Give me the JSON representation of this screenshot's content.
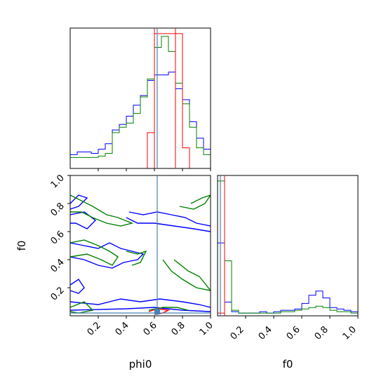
{
  "chart_data": {
    "type": "corner",
    "colors": {
      "red": "#ff0000",
      "blue": "#0000ff",
      "green": "#008000",
      "truth": "#4682b4"
    },
    "panels": [
      {
        "id": "hist-phi0",
        "type": "histogram",
        "xlim": [
          0,
          1
        ],
        "bin_edges": [
          0,
          0.05,
          0.1,
          0.15,
          0.2,
          0.25,
          0.3,
          0.35,
          0.4,
          0.45,
          0.5,
          0.55,
          0.6,
          0.65,
          0.7,
          0.75,
          0.8,
          0.85,
          0.9,
          0.95,
          1.0
        ],
        "series": [
          {
            "color": "blue",
            "counts": [
              0.1,
              0.12,
              0.12,
              0.11,
              0.14,
              0.18,
              0.28,
              0.32,
              0.38,
              0.46,
              0.53,
              0.64,
              0.68,
              0.68,
              0.7,
              0.58,
              0.5,
              0.34,
              0.22,
              0.14
            ]
          },
          {
            "color": "green",
            "counts": [
              0.08,
              0.08,
              0.08,
              0.08,
              0.09,
              0.11,
              0.26,
              0.3,
              0.33,
              0.4,
              0.52,
              0.65,
              0.88,
              0.96,
              0.85,
              0.62,
              0.47,
              0.3,
              0.15,
              0.1
            ]
          },
          {
            "color": "red",
            "counts": [
              0,
              0,
              0,
              0,
              0,
              0,
              0,
              0,
              0,
              0,
              0,
              0.26,
              0.98,
              0.98,
              0.98,
              0.98,
              0.15,
              0,
              0,
              0
            ]
          }
        ],
        "ticks": [
          0.2,
          0.4,
          0.6,
          0.8,
          1.0
        ],
        "tick_labels": []
      },
      {
        "id": "hist-f0",
        "type": "histogram",
        "xlim": [
          0,
          1
        ],
        "bin_edges": [
          0,
          0.05,
          0.1,
          0.15,
          0.2,
          0.25,
          0.3,
          0.35,
          0.4,
          0.45,
          0.5,
          0.55,
          0.6,
          0.65,
          0.7,
          0.75,
          0.8,
          0.85,
          0.9,
          0.95,
          1.0
        ],
        "series": [
          {
            "color": "blue",
            "counts": [
              0.53,
              0.1,
              0.03,
              0.02,
              0.02,
              0.02,
              0.03,
              0.02,
              0.03,
              0.04,
              0.04,
              0.05,
              0.09,
              0.15,
              0.18,
              0.13,
              0.06,
              0.05,
              0.04,
              0.03
            ]
          },
          {
            "color": "green",
            "counts": [
              0.98,
              0.4,
              0.04,
              0.02,
              0.02,
              0.02,
              0.02,
              0.02,
              0.02,
              0.03,
              0.03,
              0.04,
              0.05,
              0.06,
              0.07,
              0.06,
              0.04,
              0.03,
              0.03,
              0.02
            ]
          },
          {
            "color": "red",
            "counts": [
              0.02,
              0,
              0,
              0,
              0,
              0,
              0,
              0,
              0,
              0,
              0,
              0,
              0,
              0,
              0,
              0,
              0,
              0,
              0,
              0
            ]
          }
        ],
        "ticks": [
          0.2,
          0.4,
          0.6,
          0.8,
          1.0
        ],
        "tick_labels": [
          "0.2",
          "0.4",
          "0.6",
          "0.8",
          "1.0"
        ],
        "xlabel": "f0"
      },
      {
        "id": "scatter-phi0-f0",
        "type": "contour",
        "xlim": [
          0,
          1
        ],
        "ylim": [
          0,
          1
        ],
        "x_ticks": [
          0.2,
          0.4,
          0.6,
          0.8,
          1.0
        ],
        "x_tick_labels": [
          "0.2",
          "0.4",
          "0.6",
          "0.8",
          "1.0"
        ],
        "y_ticks": [
          0.2,
          0.4,
          0.6,
          0.8,
          1.0
        ],
        "y_tick_labels": [
          "0.2",
          "0.4",
          "0.6",
          "0.8",
          "1.0"
        ],
        "xlabel": "phi0",
        "ylabel": "f0",
        "contours": [
          {
            "color": "blue",
            "points": [
              [
                0.0,
                0.8
              ],
              [
                0.06,
                0.86
              ],
              [
                0.12,
                0.84
              ],
              [
                0.06,
                0.78
              ],
              [
                0.0,
                0.76
              ]
            ]
          },
          {
            "color": "blue",
            "points": [
              [
                0.0,
                0.72
              ],
              [
                0.1,
                0.74
              ],
              [
                0.18,
                0.68
              ],
              [
                0.12,
                0.62
              ],
              [
                0.04,
                0.66
              ],
              [
                0.0,
                0.66
              ]
            ]
          },
          {
            "color": "blue",
            "points": [
              [
                0.42,
                0.74
              ],
              [
                0.52,
                0.72
              ],
              [
                0.62,
                0.74
              ],
              [
                0.72,
                0.72
              ],
              [
                0.82,
                0.7
              ],
              [
                0.9,
                0.66
              ],
              [
                1.0,
                0.64
              ]
            ]
          },
          {
            "color": "blue",
            "points": [
              [
                0.4,
                0.7
              ],
              [
                0.48,
                0.66
              ],
              [
                0.6,
                0.66
              ],
              [
                0.74,
                0.64
              ],
              [
                0.88,
                0.62
              ],
              [
                1.0,
                0.6
              ]
            ]
          },
          {
            "color": "blue",
            "points": [
              [
                0.0,
                0.52
              ],
              [
                0.1,
                0.5
              ],
              [
                0.2,
                0.48
              ],
              [
                0.28,
                0.52
              ],
              [
                0.36,
                0.48
              ],
              [
                0.44,
                0.46
              ],
              [
                0.52,
                0.44
              ],
              [
                0.48,
                0.4
              ],
              [
                0.38,
                0.38
              ],
              [
                0.3,
                0.34
              ],
              [
                0.2,
                0.36
              ],
              [
                0.1,
                0.4
              ],
              [
                0.0,
                0.42
              ]
            ]
          },
          {
            "color": "blue",
            "points": [
              [
                0.0,
                0.22
              ],
              [
                0.06,
                0.26
              ],
              [
                0.1,
                0.2
              ],
              [
                0.06,
                0.16
              ],
              [
                0.0,
                0.18
              ]
            ]
          },
          {
            "color": "blue",
            "points": [
              [
                0.0,
                0.1
              ],
              [
                0.2,
                0.08
              ],
              [
                0.36,
                0.12
              ],
              [
                0.5,
                0.1
              ],
              [
                0.64,
                0.12
              ],
              [
                0.8,
                0.1
              ],
              [
                0.92,
                0.08
              ],
              [
                1.0,
                0.06
              ]
            ]
          },
          {
            "color": "blue",
            "points": [
              [
                0.0,
                0.04
              ],
              [
                0.4,
                0.05
              ],
              [
                0.6,
                0.06
              ],
              [
                0.8,
                0.04
              ],
              [
                1.0,
                0.03
              ]
            ]
          },
          {
            "color": "green",
            "points": [
              [
                0.0,
                0.86
              ],
              [
                0.08,
                0.82
              ],
              [
                0.16,
                0.78
              ],
              [
                0.26,
                0.72
              ],
              [
                0.34,
                0.7
              ],
              [
                0.44,
                0.66
              ],
              [
                0.36,
                0.64
              ],
              [
                0.26,
                0.66
              ],
              [
                0.16,
                0.7
              ],
              [
                0.08,
                0.74
              ],
              [
                0.0,
                0.74
              ]
            ]
          },
          {
            "color": "green",
            "points": [
              [
                0.78,
                0.78
              ],
              [
                0.88,
                0.76
              ],
              [
                0.96,
                0.8
              ],
              [
                1.0,
                0.86
              ],
              [
                0.94,
                0.84
              ],
              [
                0.86,
                0.8
              ]
            ]
          },
          {
            "color": "green",
            "points": [
              [
                0.0,
                0.52
              ],
              [
                0.1,
                0.54
              ],
              [
                0.2,
                0.5
              ],
              [
                0.28,
                0.46
              ],
              [
                0.34,
                0.42
              ],
              [
                0.3,
                0.36
              ],
              [
                0.22,
                0.4
              ],
              [
                0.12,
                0.44
              ],
              [
                0.0,
                0.42
              ]
            ]
          },
          {
            "color": "green",
            "points": [
              [
                0.4,
                0.46
              ],
              [
                0.48,
                0.44
              ],
              [
                0.54,
                0.46
              ],
              [
                0.5,
                0.38
              ],
              [
                0.44,
                0.36
              ]
            ]
          },
          {
            "color": "green",
            "points": [
              [
                0.66,
                0.4
              ],
              [
                0.72,
                0.32
              ],
              [
                0.8,
                0.26
              ],
              [
                0.9,
                0.2
              ],
              [
                1.0,
                0.18
              ],
              [
                0.92,
                0.28
              ],
              [
                0.84,
                0.32
              ],
              [
                0.74,
                0.4
              ]
            ]
          },
          {
            "color": "green",
            "points": [
              [
                0.0,
                0.06
              ],
              [
                0.1,
                0.1
              ],
              [
                0.16,
                0.04
              ],
              [
                0.06,
                0.02
              ],
              [
                0.0,
                0.03
              ]
            ]
          },
          {
            "color": "green",
            "points": [
              [
                0.56,
                0.04
              ],
              [
                0.66,
                0.06
              ],
              [
                0.76,
                0.06
              ],
              [
                0.84,
                0.04
              ]
            ]
          },
          {
            "color": "red",
            "points": [
              [
                0.56,
                0.03
              ],
              [
                0.62,
                0.05
              ],
              [
                0.7,
                0.04
              ],
              [
                0.66,
                0.02
              ],
              [
                0.6,
                0.01
              ]
            ]
          }
        ],
        "point": {
          "x": 0.62,
          "y": 0.02
        }
      }
    ],
    "truth": {
      "phi0": 0.62,
      "f0": 0.02
    },
    "red_line": {
      "phi0_lower": 0.6,
      "phi0_upper": 0.75,
      "f0": 0.05
    }
  }
}
